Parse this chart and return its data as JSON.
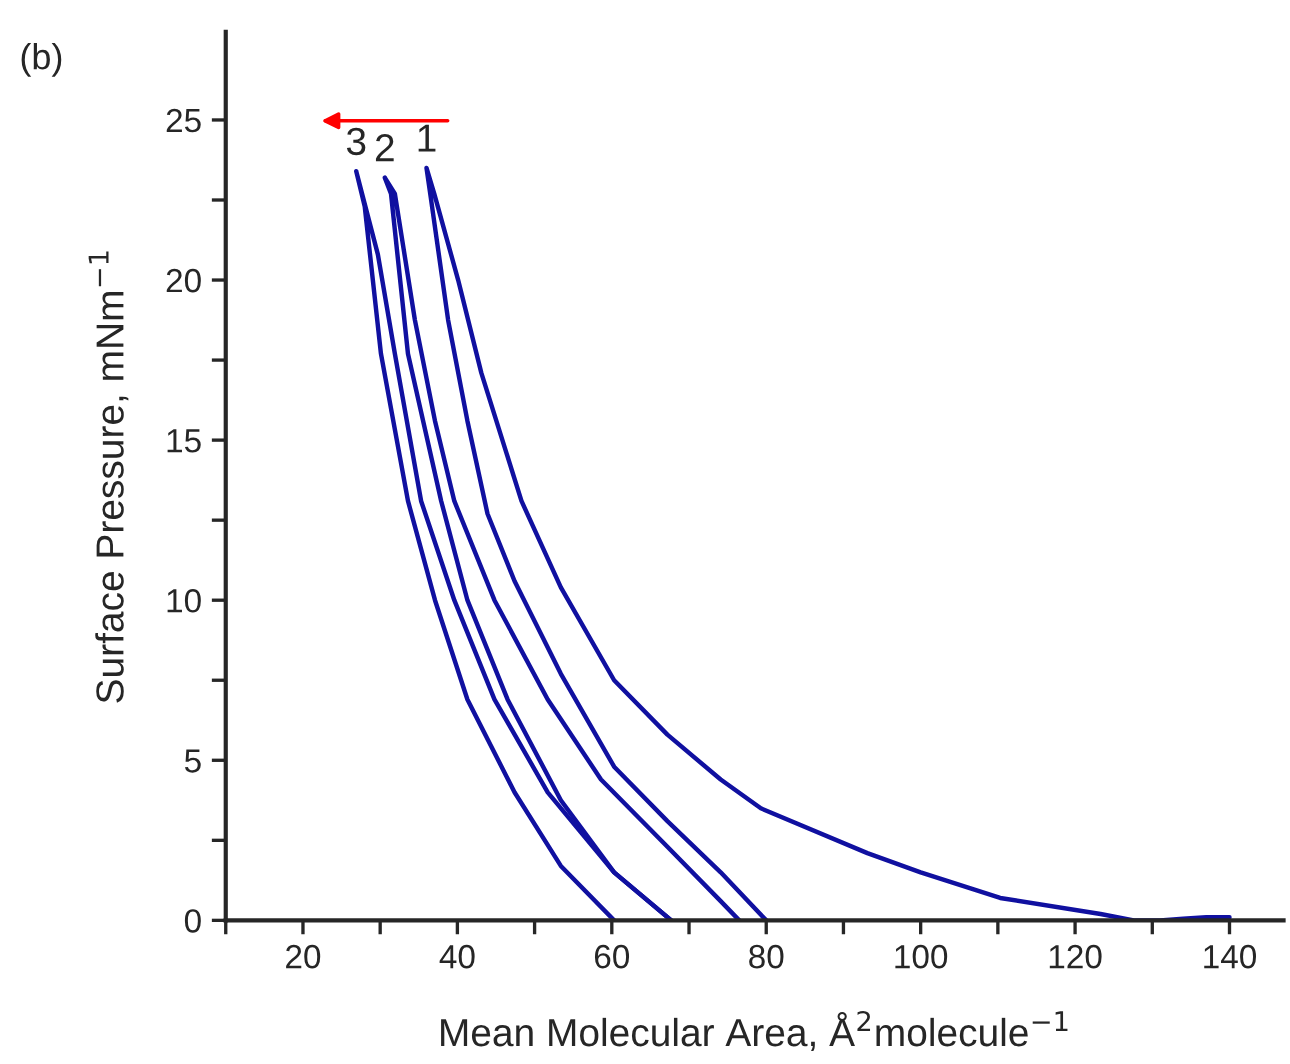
{
  "chart_data": {
    "type": "line",
    "xlabel": "Mean Molecular Area, Å$^{2}$molecule$^{−1}$",
    "ylabel": "Surface Pressure, mNm$^{−1}$",
    "annotations": [
      "(b)",
      {
        "text": "1",
        "x": 36.0,
        "y": 23.5
      },
      {
        "text": "2",
        "x": 30.6,
        "y": 23.2
      },
      {
        "text": "3",
        "x": 26.9,
        "y": 23.4
      }
    ],
    "xlim": [
      10,
      147
    ],
    "ylim": [
      0,
      27.75
    ],
    "xticks": [
      {
        "value": 10,
        "label": null
      },
      20,
      {
        "value": 30,
        "label": null
      },
      40,
      {
        "value": 50,
        "label": null
      },
      60,
      {
        "value": 70,
        "label": null
      },
      80,
      {
        "value": 90,
        "label": null
      },
      100,
      {
        "value": 110,
        "label": null
      },
      120,
      {
        "value": 130,
        "label": null
      },
      140
    ],
    "yticks": [
      0,
      {
        "value": 2.5,
        "label": null
      },
      5,
      {
        "value": 7.5,
        "label": null
      },
      10,
      {
        "value": 12.5,
        "label": null
      },
      15,
      {
        "value": 17.5,
        "label": null
      },
      20,
      {
        "value": 22.5,
        "label": null
      },
      25
    ],
    "grid": false,
    "legend": false,
    "marker": "none",
    "line_style": "solid",
    "series": [
      {
        "color": "#1010a0",
        "x": [
          140,
          137,
          134,
          131,
          127.6,
          123.3,
          110.3,
          100,
          93.1,
          79.3,
          74.1,
          67.2,
          60.3,
          53.4,
          48.3,
          43.1,
          40.1,
          37.0,
          36.0,
          36.6,
          38.8,
          41.3,
          43.9,
          47.4,
          53.4,
          60.3,
          67.2,
          74.1,
          80
        ],
        "values": [
          0.1,
          0.1,
          0.05,
          0,
          0,
          0.2,
          0.7,
          1.5,
          2.1,
          3.5,
          4.4,
          5.8,
          7.5,
          10.4,
          13.1,
          17.1,
          20,
          22.7,
          23.5,
          22.5,
          18.75,
          15.6,
          12.7,
          10.6,
          7.7,
          4.8,
          3.1,
          1.5,
          0
        ]
      },
      {
        "color": "#1010a0",
        "x": [
          76.5,
          74.1,
          67.2,
          58.6,
          51.7,
          44.8,
          39.6,
          37.1,
          34.5,
          31.9,
          30.6,
          31.4,
          33.6,
          37.9,
          41.3,
          46.5,
          53.4,
          60.3,
          67.7
        ],
        "values": [
          0,
          0.6,
          2.3,
          4.4,
          6.9,
          10,
          13.1,
          15.6,
          18.75,
          22.7,
          23.2,
          22.7,
          17.7,
          13.1,
          10,
          6.9,
          3.75,
          1.5,
          0
        ]
      },
      {
        "color": "#1010a0",
        "x": [
          67.7,
          60.3,
          51.7,
          44.8,
          39.6,
          35.3,
          31.9,
          29.7,
          26.9,
          28.0,
          30.1,
          33.6,
          37.1,
          41.3,
          47.4,
          53.4,
          60.3
        ],
        "values": [
          0,
          1.5,
          4.0,
          6.9,
          10,
          13.1,
          17.7,
          20.8,
          23.4,
          22.3,
          17.7,
          13.1,
          10,
          6.9,
          4.0,
          1.7,
          0
        ]
      }
    ]
  }
}
